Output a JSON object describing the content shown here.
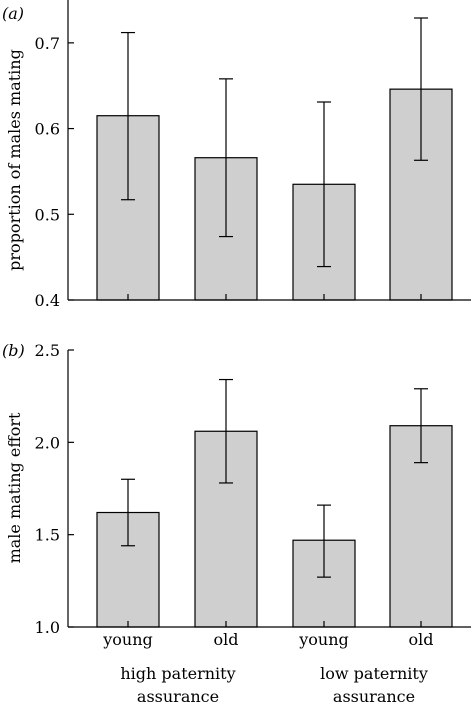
{
  "chart_data": [
    {
      "type": "bar",
      "panel_label": "(a)",
      "ylabel": "proportion of males mating",
      "ylim": [
        0.4,
        0.75
      ],
      "yticks": [
        0.4,
        0.5,
        0.6,
        0.7
      ],
      "ytick_labels": [
        "0.4",
        "0.5",
        "0.6",
        "0.7"
      ],
      "categories": [
        "young",
        "old",
        "young",
        "old"
      ],
      "values": [
        0.615,
        0.566,
        0.535,
        0.646
      ],
      "err_low": [
        0.517,
        0.474,
        0.439,
        0.563
      ],
      "err_high": [
        0.712,
        0.658,
        0.631,
        0.729
      ]
    },
    {
      "type": "bar",
      "panel_label": "(b)",
      "ylabel": "male mating effort",
      "ylim": [
        1.0,
        2.5
      ],
      "yticks": [
        1.0,
        1.5,
        2.0,
        2.5
      ],
      "ytick_labels": [
        "1.0",
        "1.5",
        "2.0",
        "2.5"
      ],
      "categories": [
        "young",
        "old",
        "young",
        "old"
      ],
      "values": [
        1.62,
        2.06,
        1.47,
        2.09
      ],
      "err_low": [
        1.44,
        1.78,
        1.27,
        1.89
      ],
      "err_high": [
        1.8,
        2.34,
        1.66,
        2.29
      ]
    }
  ],
  "groups": [
    {
      "line1": "high paternity",
      "line2": "assurance"
    },
    {
      "line1": "low paternity",
      "line2": "assurance"
    }
  ]
}
